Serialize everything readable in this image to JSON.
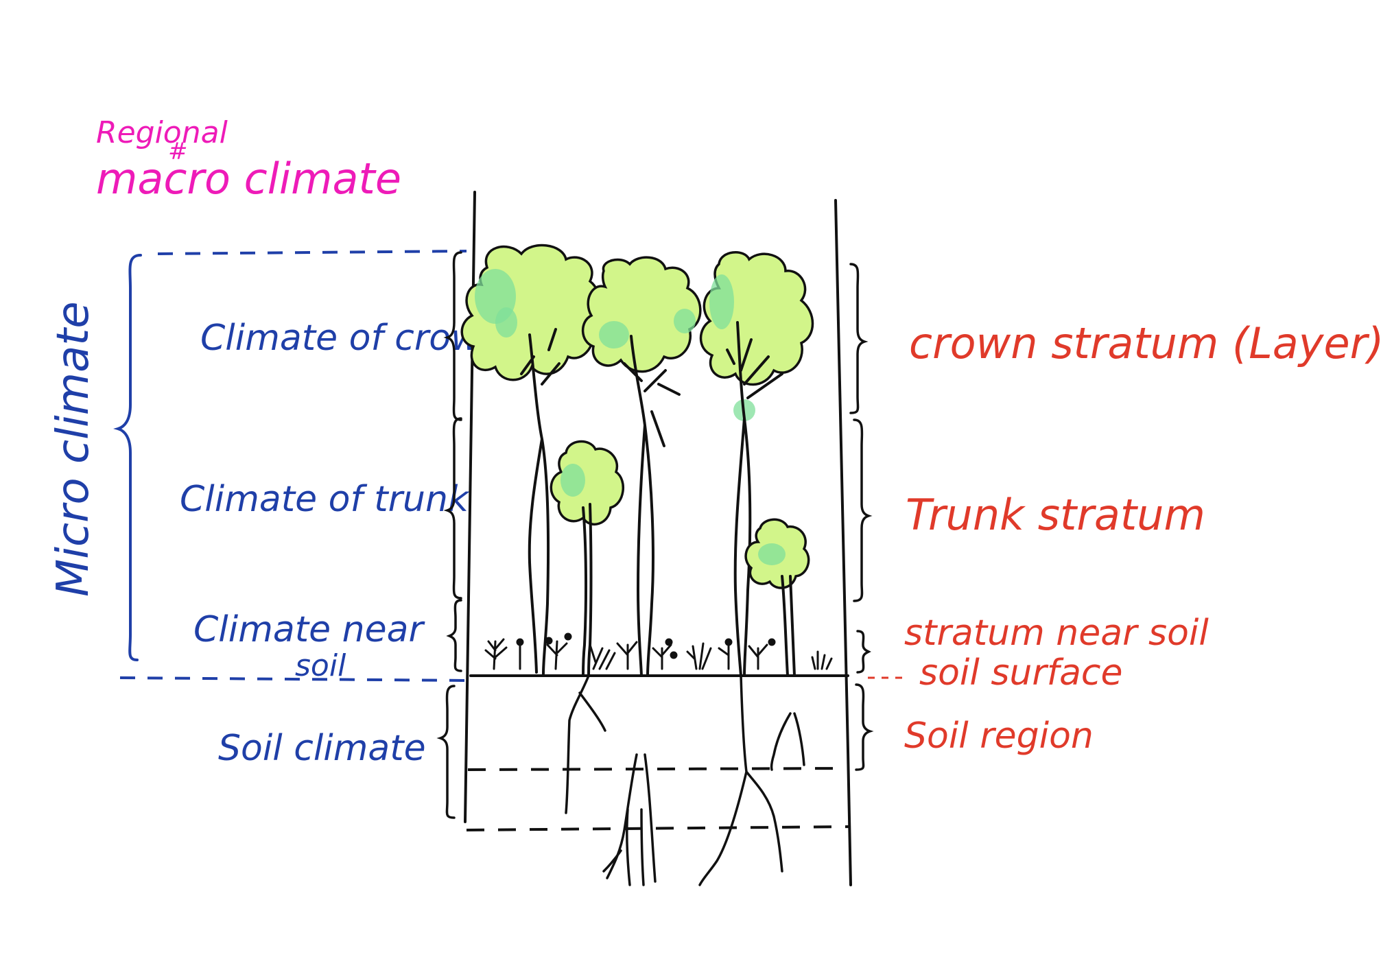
{
  "title": {
    "regional": "Regional",
    "hash": "#",
    "macro": "macro climate"
  },
  "left_labels": {
    "micro_climate": "Micro climate",
    "crown": "Climate of crown",
    "trunk": "Climate of trunk",
    "near_soil_line1": "Climate near",
    "near_soil_line2": "soil",
    "soil": "Soil climate"
  },
  "right_labels": {
    "crown_stratum": "crown stratum (Layer)",
    "trunk_stratum": "Trunk stratum",
    "near_soil_stratum": "stratum near soil",
    "soil_surface": "soil surface",
    "soil_region": "Soil region"
  },
  "colors": {
    "left_text": "#1f3fa8",
    "right_text": "#e03a2a",
    "title_text": "#ee1bb8",
    "canopy_fill": "#d2f58a",
    "canopy_blob": "#7fdf9a",
    "ink": "#111111"
  }
}
